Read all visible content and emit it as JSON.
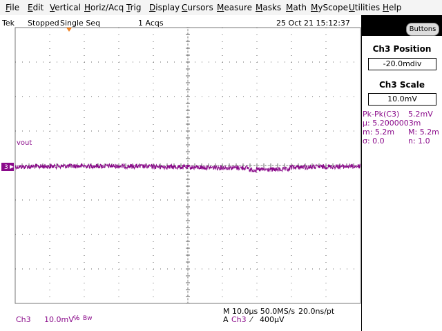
{
  "menu": [
    "File",
    "Edit",
    "Vertical",
    "Horiz/Acq",
    "Trig",
    "Display",
    "Cursors",
    "Measure",
    "Masks",
    "Math",
    "MyScope",
    "Utilities",
    "Help"
  ],
  "status": {
    "brand": "Tek",
    "state": "Stopped",
    "mode": "Single Seq",
    "acqs": "1 Acqs",
    "datetime": "25 Oct 21 15:12:37"
  },
  "side_panel": {
    "button": "Buttons",
    "position_label": "Ch3 Position",
    "position_value": "-20.0mdiv",
    "scale_label": "Ch3 Scale",
    "scale_value": "10.0mV",
    "measurements": [
      [
        "Pk-Pk(C3)",
        "5.2mV"
      ],
      [
        "µ: 5.2000003m"
      ],
      [
        "m: 5.2m",
        "M: 5.2m"
      ],
      [
        "σ: 0.0",
        "n:  1.0"
      ]
    ]
  },
  "waveform": {
    "label": "vout",
    "channel_marker": "3"
  },
  "footer": {
    "channel": "Ch3",
    "scale": "10.0mV",
    "coupling": "℅",
    "bandwidth": "Bw",
    "horizontal": "M 10.0µs 50.0MS/s",
    "resolution": "20.0ns/pt",
    "trigger_source": "A",
    "trigger_channel": "Ch3",
    "trigger_slope": "⁄",
    "trigger_level": "400µV"
  }
}
